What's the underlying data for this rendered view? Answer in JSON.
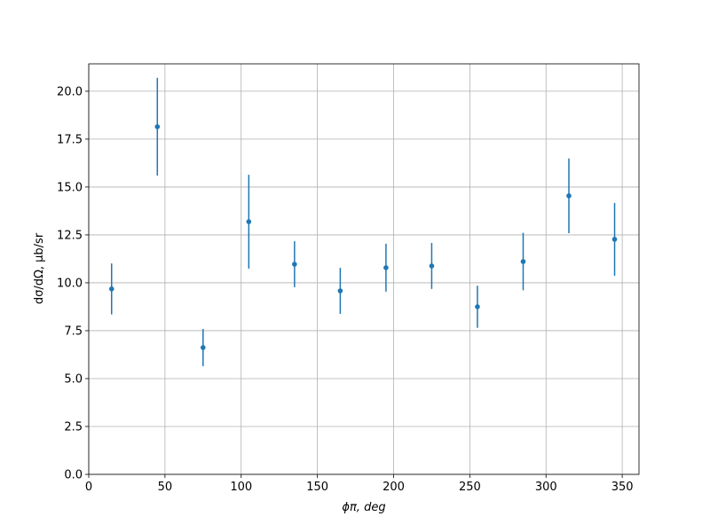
{
  "chart_data": {
    "type": "errorbar",
    "x_label": "ϕπ, deg",
    "y_label": "dσ/dΩ, μb/sr",
    "x": [
      15,
      45,
      75,
      105,
      135,
      165,
      195,
      225,
      255,
      285,
      315,
      345
    ],
    "values": [
      9.68,
      18.15,
      6.62,
      13.19,
      10.97,
      9.58,
      10.79,
      10.88,
      8.75,
      11.11,
      14.54,
      12.27
    ],
    "errors": [
      1.33,
      2.55,
      0.97,
      2.45,
      1.2,
      1.2,
      1.25,
      1.2,
      1.1,
      1.5,
      1.95,
      1.9
    ],
    "color": "#1f77b4",
    "xlim": [
      0,
      361
    ],
    "ylim": [
      0,
      21.43
    ],
    "xticks": [
      0,
      50,
      100,
      150,
      200,
      250,
      300,
      350
    ],
    "yticks": [
      {
        "value": 0,
        "label": "0.0"
      },
      2.5,
      {
        "value": 5,
        "label": "5.0"
      },
      7.5,
      {
        "value": 10,
        "label": "10.0"
      },
      12.5,
      {
        "value": 15,
        "label": "15.0"
      },
      17.5,
      {
        "value": 20,
        "label": "20.0"
      }
    ],
    "grid": true
  }
}
